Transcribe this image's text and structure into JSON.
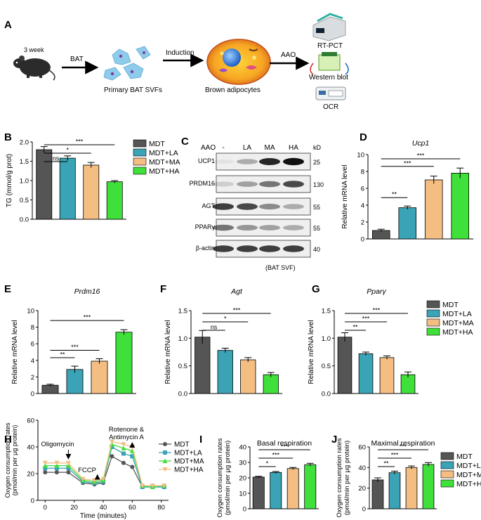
{
  "colors": {
    "MDT": "#555555",
    "MDT+LA": "#3AA3B5",
    "MDT+MA": "#F4BE82",
    "MDT+HA": "#3FE03A"
  },
  "panelA": {
    "letter": "A",
    "mouse_label": "3 week",
    "arrow1": "BAT",
    "svf_label": "Primary BAT SVFs",
    "arrow2": "Induction",
    "adipocyte_label": "Brown adipocytes",
    "arrow3": "AAO",
    "assays": [
      "RT-PCT",
      "Western blot",
      "OCR"
    ]
  },
  "panelC": {
    "letter": "C",
    "treatment_label": "AAO",
    "lanes": [
      "-",
      "LA",
      "MA",
      "HA"
    ],
    "kd_label": "kD",
    "proteins": [
      {
        "name": "UCP1",
        "kd": "25"
      },
      {
        "name": "PRDM16",
        "kd": "130"
      },
      {
        "name": "AGT",
        "kd": "55"
      },
      {
        "name": "PPARγ",
        "kd": "55"
      },
      {
        "name": "β-actin",
        "kd": "40"
      }
    ],
    "note": "(BAT SVF)"
  },
  "legend_groups": [
    "MDT",
    "MDT+LA",
    "MDT+MA",
    "MDT+HA"
  ],
  "panelH_legend": [
    "MDT",
    "MDT+LA",
    "MDT+MA",
    "MDT+HA"
  ],
  "chart_data": [
    {
      "panel": "B",
      "type": "bar",
      "ylabel": "TG (mmol/g prot)",
      "ylim": [
        0,
        2.0
      ],
      "yticks": [
        0.0,
        0.5,
        1.0,
        1.5,
        2.0
      ],
      "tick_decimals": 1,
      "categories": [
        "MDT",
        "MDT+LA",
        "MDT+MA",
        "MDT+HA"
      ],
      "values": [
        1.8,
        1.58,
        1.4,
        0.97
      ],
      "errors": [
        0.08,
        0.06,
        0.07,
        0.03
      ],
      "significance": [
        {
          "from": 0,
          "to": 1,
          "label": "ns"
        },
        {
          "from": 0,
          "to": 2,
          "label": "*"
        },
        {
          "from": 0,
          "to": 3,
          "label": "***"
        }
      ],
      "legend": "right"
    },
    {
      "panel": "D",
      "type": "bar",
      "title": "Ucp1",
      "ylabel": "Relative mRNA level",
      "ylim": [
        0,
        10
      ],
      "yticks": [
        0,
        2,
        4,
        6,
        8,
        10
      ],
      "tick_decimals": 0,
      "categories": [
        "MDT",
        "MDT+LA",
        "MDT+MA",
        "MDT+HA"
      ],
      "values": [
        1.0,
        3.7,
        7.0,
        7.8
      ],
      "errors": [
        0.15,
        0.2,
        0.45,
        0.6
      ],
      "significance": [
        {
          "from": 0,
          "to": 1,
          "label": "**"
        },
        {
          "from": 0,
          "to": 2,
          "label": "***"
        },
        {
          "from": 0,
          "to": 3,
          "label": "***"
        }
      ]
    },
    {
      "panel": "E",
      "type": "bar",
      "title": "Prdm16",
      "ylabel": "Relative mRNA level",
      "ylim": [
        0,
        10
      ],
      "yticks": [
        0,
        2,
        4,
        6,
        8,
        10
      ],
      "tick_decimals": 0,
      "categories": [
        "MDT",
        "MDT+LA",
        "MDT+MA",
        "MDT+HA"
      ],
      "values": [
        1.0,
        2.9,
        3.9,
        7.4
      ],
      "errors": [
        0.12,
        0.4,
        0.3,
        0.3
      ],
      "significance": [
        {
          "from": 0,
          "to": 1,
          "label": "**"
        },
        {
          "from": 0,
          "to": 2,
          "label": "***"
        },
        {
          "from": 0,
          "to": 3,
          "label": "***"
        }
      ]
    },
    {
      "panel": "F",
      "type": "bar",
      "title": "Agt",
      "ylabel": "Relative mRNA level",
      "ylim": [
        0,
        1.5
      ],
      "yticks": [
        0.0,
        0.5,
        1.0,
        1.5
      ],
      "tick_decimals": 1,
      "categories": [
        "MDT",
        "MDT+LA",
        "MDT+MA",
        "MDT+HA"
      ],
      "values": [
        1.02,
        0.78,
        0.61,
        0.34
      ],
      "errors": [
        0.12,
        0.04,
        0.04,
        0.04
      ],
      "significance": [
        {
          "from": 0,
          "to": 1,
          "label": "ns"
        },
        {
          "from": 0,
          "to": 2,
          "label": "*"
        },
        {
          "from": 0,
          "to": 3,
          "label": "***"
        }
      ]
    },
    {
      "panel": "G",
      "type": "bar",
      "title": "Pparγ",
      "ylabel": "Relative mRNA level",
      "ylim": [
        0,
        1.5
      ],
      "yticks": [
        0.0,
        0.5,
        1.0,
        1.5
      ],
      "tick_decimals": 1,
      "categories": [
        "MDT",
        "MDT+LA",
        "MDT+MA",
        "MDT+HA"
      ],
      "values": [
        1.02,
        0.72,
        0.65,
        0.34
      ],
      "errors": [
        0.08,
        0.03,
        0.03,
        0.05
      ],
      "significance": [
        {
          "from": 0,
          "to": 1,
          "label": "**"
        },
        {
          "from": 0,
          "to": 2,
          "label": "***"
        },
        {
          "from": 0,
          "to": 3,
          "label": "***"
        }
      ],
      "legend": "right"
    },
    {
      "panel": "H",
      "type": "line",
      "xlabel": "Time (minutes)",
      "ylabel": "Oxygen consumption rates (pmol/min per μg protein)",
      "xlim": [
        -5,
        85
      ],
      "ylim": [
        0,
        60
      ],
      "xticks": [
        0,
        20,
        40,
        60,
        80
      ],
      "yticks": [
        0,
        20,
        40,
        60
      ],
      "x": [
        0,
        8,
        16,
        26,
        34,
        40,
        46,
        54,
        60,
        67,
        74,
        82
      ],
      "series": [
        {
          "name": "MDT",
          "values": [
            21,
            21,
            21,
            13,
            12,
            13,
            33,
            28,
            25,
            10,
            10,
            10
          ]
        },
        {
          "name": "MDT+LA",
          "values": [
            24,
            24,
            24,
            14,
            13,
            14,
            40,
            35,
            33,
            10,
            10,
            10
          ]
        },
        {
          "name": "MDT+MA",
          "values": [
            26,
            26,
            26,
            15,
            14,
            15,
            42,
            39,
            37,
            11,
            10,
            11
          ]
        },
        {
          "name": "MDT+HA",
          "values": [
            28,
            28,
            28,
            16,
            15,
            16,
            44,
            42,
            40,
            11,
            11,
            11
          ]
        }
      ],
      "annotations": [
        {
          "text": "Oligomycin",
          "x": 16
        },
        {
          "text": "FCCP",
          "x": 36
        },
        {
          "text": "Rotenone & Antimycin A",
          "x": 60
        }
      ],
      "legend": "right"
    },
    {
      "panel": "I",
      "type": "bar",
      "title": "Basal respiration",
      "ylabel": "Oxygen consumption rates (pmol/min per μg protein)",
      "ylim": [
        0,
        40
      ],
      "yticks": [
        0,
        10,
        20,
        30,
        40
      ],
      "tick_decimals": 0,
      "categories": [
        "MDT",
        "MDT+LA",
        "MDT+MA",
        "MDT+HA"
      ],
      "values": [
        20.5,
        23.5,
        26,
        28.5
      ],
      "errors": [
        0.5,
        0.6,
        0.7,
        0.9
      ],
      "significance": [
        {
          "from": 0,
          "to": 1,
          "label": "*"
        },
        {
          "from": 0,
          "to": 2,
          "label": "***"
        },
        {
          "from": 0,
          "to": 3,
          "label": "***"
        }
      ]
    },
    {
      "panel": "J",
      "type": "bar",
      "title": "Maximal respiration",
      "ylabel": "Oxygen consumption rates (pmol/min per μg protein)",
      "ylim": [
        0,
        60
      ],
      "yticks": [
        0,
        20,
        40,
        60
      ],
      "tick_decimals": 0,
      "categories": [
        "MDT",
        "MDT+LA",
        "MDT+MA",
        "MDT+HA"
      ],
      "values": [
        28,
        35,
        40,
        43
      ],
      "errors": [
        2,
        1.5,
        1.5,
        1.8
      ],
      "significance": [
        {
          "from": 0,
          "to": 1,
          "label": "**"
        },
        {
          "from": 0,
          "to": 2,
          "label": "***"
        },
        {
          "from": 0,
          "to": 3,
          "label": "***"
        }
      ],
      "legend": "right"
    }
  ]
}
